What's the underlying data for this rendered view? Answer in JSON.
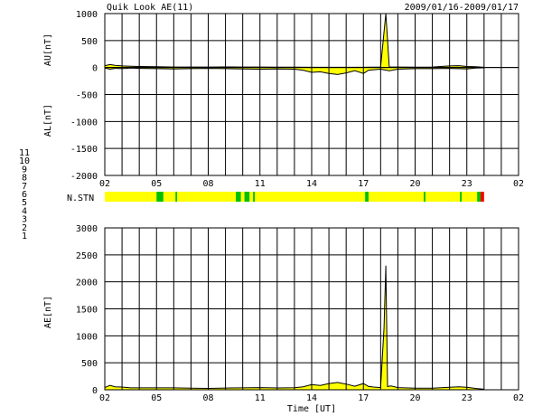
{
  "header": {
    "title": "Quik Look AE(11)",
    "date_range": "2009/01/16-2009/01/17"
  },
  "station_legend": [
    {
      "label": "11",
      "color": "#00d0ff"
    },
    {
      "label": "10",
      "color": "#ff00ff"
    },
    {
      "label": "9",
      "color": "#0000c0"
    },
    {
      "label": "8",
      "color": "#ffff00"
    },
    {
      "label": "7",
      "color": "#00c000"
    },
    {
      "label": "6",
      "color": "#ff0000"
    },
    {
      "label": "5",
      "color": "#d0d0d0"
    },
    {
      "label": "4",
      "color": "#c0c0c0"
    },
    {
      "label": "3",
      "color": "#00a0a0"
    },
    {
      "label": "2",
      "color": "#800080"
    },
    {
      "label": "1",
      "color": "#0000ff"
    }
  ],
  "nstn": {
    "label": "N.STN",
    "segments": [
      {
        "from": 2.0,
        "to": 5.0,
        "color": "#ffff00"
      },
      {
        "from": 5.0,
        "to": 5.4,
        "color": "#00c000"
      },
      {
        "from": 5.4,
        "to": 6.1,
        "color": "#ffff00"
      },
      {
        "from": 6.1,
        "to": 6.2,
        "color": "#00c000"
      },
      {
        "from": 6.2,
        "to": 9.6,
        "color": "#ffff00"
      },
      {
        "from": 9.6,
        "to": 9.9,
        "color": "#00c000"
      },
      {
        "from": 9.9,
        "to": 10.1,
        "color": "#ffff00"
      },
      {
        "from": 10.1,
        "to": 10.4,
        "color": "#00c000"
      },
      {
        "from": 10.4,
        "to": 10.6,
        "color": "#ffff00"
      },
      {
        "from": 10.6,
        "to": 10.7,
        "color": "#00c000"
      },
      {
        "from": 10.7,
        "to": 17.1,
        "color": "#ffff00"
      },
      {
        "from": 17.1,
        "to": 17.3,
        "color": "#00c000"
      },
      {
        "from": 17.3,
        "to": 20.5,
        "color": "#ffff00"
      },
      {
        "from": 20.5,
        "to": 20.6,
        "color": "#00c000"
      },
      {
        "from": 20.6,
        "to": 22.6,
        "color": "#ffff00"
      },
      {
        "from": 22.6,
        "to": 22.7,
        "color": "#00c000"
      },
      {
        "from": 22.7,
        "to": 23.6,
        "color": "#ffff00"
      },
      {
        "from": 23.6,
        "to": 23.8,
        "color": "#00c000"
      },
      {
        "from": 23.8,
        "to": 24.0,
        "color": "#ff0000"
      }
    ]
  },
  "chart_data": [
    {
      "type": "area",
      "panel": "AU/AL",
      "ylabel_top": "AU[nT]",
      "ylabel_bottom": "AL[nT]",
      "xlabel": "",
      "xlim": [
        2,
        26
      ],
      "ylim": [
        -2000,
        1000
      ],
      "yticks": [
        1000,
        500,
        0,
        -500,
        -1000,
        -1500,
        -2000
      ],
      "xtick_labels": [
        "02",
        "05",
        "08",
        "11",
        "14",
        "17",
        "20",
        "23",
        "02"
      ],
      "grid": true,
      "fill_color": "#ffff00",
      "line_color": "#000000",
      "series": [
        {
          "name": "AU",
          "x": [
            2.0,
            2.3,
            2.6,
            3.0,
            3.5,
            4.0,
            5.0,
            6.0,
            7.0,
            8.0,
            9.0,
            10.0,
            11.0,
            12.0,
            13.0,
            14.0,
            15.0,
            16.0,
            17.0,
            18.0,
            18.3,
            18.5,
            19.0,
            20.0,
            21.0,
            22.0,
            22.5,
            23.0,
            23.5,
            24.0
          ],
          "y": [
            35,
            55,
            40,
            30,
            25,
            20,
            15,
            10,
            10,
            10,
            12,
            10,
            10,
            8,
            8,
            5,
            5,
            5,
            5,
            10,
            1000,
            10,
            10,
            8,
            10,
            30,
            35,
            20,
            15,
            5
          ]
        },
        {
          "name": "AL",
          "x": [
            2.0,
            2.3,
            2.6,
            3.0,
            3.5,
            4.0,
            5.0,
            6.0,
            7.0,
            8.0,
            9.0,
            10.0,
            11.0,
            12.0,
            13.0,
            13.5,
            14.0,
            14.5,
            15.0,
            15.5,
            16.0,
            16.5,
            17.0,
            17.3,
            17.6,
            18.0,
            18.5,
            19.0,
            20.0,
            21.0,
            22.0,
            23.0,
            23.5,
            24.0
          ],
          "y": [
            -10,
            -30,
            -15,
            -20,
            -10,
            -15,
            -20,
            -25,
            -20,
            -15,
            -20,
            -25,
            -30,
            -25,
            -30,
            -50,
            -90,
            -80,
            -110,
            -130,
            -100,
            -60,
            -110,
            -50,
            -40,
            -30,
            -60,
            -30,
            -20,
            -20,
            -15,
            -25,
            -10,
            -5
          ]
        }
      ]
    },
    {
      "type": "area",
      "panel": "AE",
      "ylabel": "AE[nT]",
      "xlabel": "Time [UT]",
      "xlim": [
        2,
        26
      ],
      "ylim": [
        0,
        3000
      ],
      "yticks": [
        3000,
        2500,
        2000,
        1500,
        1000,
        500,
        0
      ],
      "xtick_labels": [
        "02",
        "05",
        "08",
        "11",
        "14",
        "17",
        "20",
        "23",
        "02"
      ],
      "grid": true,
      "fill_color": "#ffff00",
      "line_color": "#000000",
      "series": [
        {
          "name": "AE",
          "x": [
            2.0,
            2.3,
            2.6,
            3.0,
            3.5,
            4.0,
            5.0,
            6.0,
            7.0,
            8.0,
            9.0,
            10.0,
            11.0,
            12.0,
            13.0,
            13.5,
            14.0,
            14.5,
            15.0,
            15.5,
            16.0,
            16.5,
            17.0,
            17.3,
            17.6,
            18.0,
            18.2,
            18.3,
            18.4,
            18.6,
            19.0,
            20.0,
            21.0,
            22.0,
            22.5,
            23.0,
            23.5,
            24.0
          ],
          "y": [
            40,
            80,
            55,
            50,
            35,
            35,
            35,
            35,
            30,
            25,
            32,
            35,
            40,
            33,
            38,
            55,
            95,
            80,
            115,
            135,
            105,
            65,
            115,
            60,
            50,
            40,
            1150,
            2300,
            60,
            70,
            40,
            28,
            30,
            45,
            55,
            45,
            25,
            10
          ]
        }
      ]
    }
  ]
}
